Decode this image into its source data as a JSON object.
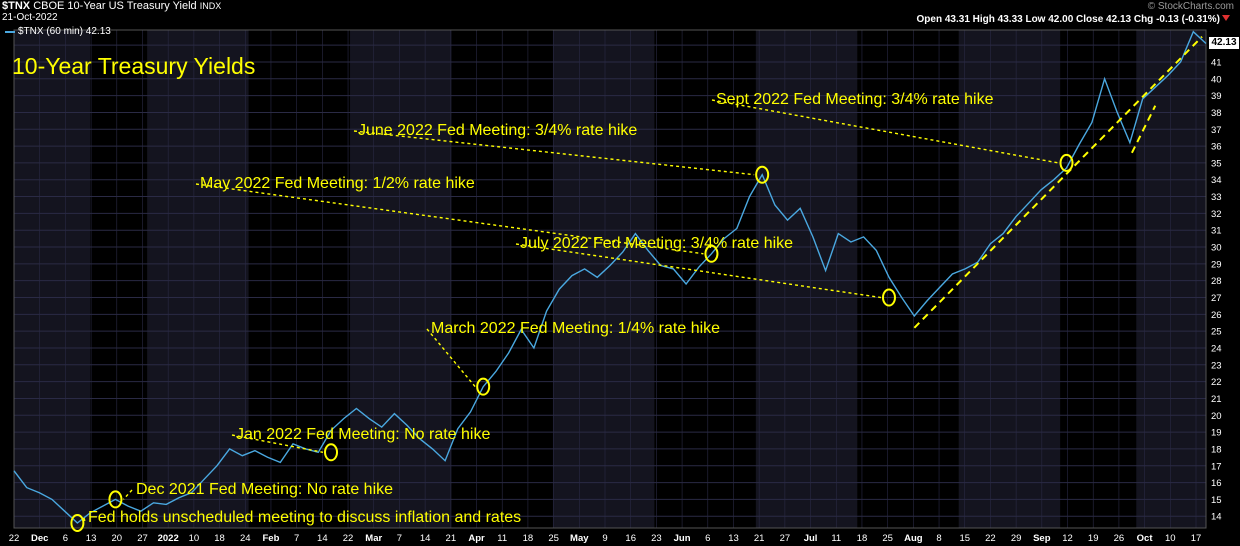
{
  "header": {
    "symbol": "$TNX",
    "name": "CBOE 10-Year US Treasury Yield",
    "exchange": "INDX",
    "date": "21-Oct-2022",
    "attribution": "© StockCharts.com",
    "ohlc": "Open 43.31  High 43.33  Low 42.00  Close 42.13  Chg -0.13 (-0.31%)",
    "legend": "$TNX (60 min) 42.13",
    "last_label": "42.13"
  },
  "colors": {
    "background": "#000000",
    "band": "#14141f",
    "line": "#4aa8e0",
    "annotation": "#ffff00",
    "grid": "#2a2a45"
  },
  "chart_data": {
    "type": "line",
    "title": "10-Year Treasury Yields",
    "xlabel": "",
    "ylabel": "",
    "ylim": [
      13.3,
      42.9
    ],
    "x_ticks": [
      "22",
      "Dec",
      "6",
      "13",
      "20",
      "27",
      "2022",
      "10",
      "18",
      "24",
      "Feb",
      "7",
      "14",
      "22",
      "Mar",
      "7",
      "14",
      "21",
      "Apr",
      "11",
      "18",
      "25",
      "May",
      "9",
      "16",
      "23",
      "Jun",
      "6",
      "13",
      "21",
      "27",
      "Jul",
      "11",
      "18",
      "25",
      "Aug",
      "8",
      "15",
      "22",
      "29",
      "Sep",
      "12",
      "19",
      "26",
      "Oct",
      "10",
      "17"
    ],
    "y_ticks": [
      14,
      15,
      16,
      17,
      18,
      19,
      20,
      21,
      22,
      23,
      24,
      25,
      26,
      27,
      28,
      29,
      30,
      31,
      32,
      33,
      34,
      35,
      36,
      37,
      38,
      39,
      40,
      41,
      42
    ],
    "series": [
      {
        "name": "$TNX (60 min)",
        "values": [
          [
            0,
            16.7
          ],
          [
            1,
            15.7
          ],
          [
            2,
            15.4
          ],
          [
            3,
            15.0
          ],
          [
            4,
            14.3
          ],
          [
            5,
            13.6
          ],
          [
            6,
            14.2
          ],
          [
            7,
            14.6
          ],
          [
            8,
            15.0
          ],
          [
            9,
            14.6
          ],
          [
            10,
            14.3
          ],
          [
            11,
            14.8
          ],
          [
            12,
            14.7
          ],
          [
            13,
            15.1
          ],
          [
            14,
            15.4
          ],
          [
            15,
            16.2
          ],
          [
            16,
            17.0
          ],
          [
            17,
            18.0
          ],
          [
            18,
            17.6
          ],
          [
            19,
            17.9
          ],
          [
            20,
            17.5
          ],
          [
            21,
            17.2
          ],
          [
            22,
            18.3
          ],
          [
            23,
            18.0
          ],
          [
            24,
            17.8
          ],
          [
            25,
            19.1
          ],
          [
            26,
            19.8
          ],
          [
            27,
            20.4
          ],
          [
            28,
            19.8
          ],
          [
            29,
            19.3
          ],
          [
            30,
            20.1
          ],
          [
            31,
            19.4
          ],
          [
            32,
            18.6
          ],
          [
            33,
            18.0
          ],
          [
            34,
            17.3
          ],
          [
            35,
            19.2
          ],
          [
            36,
            20.2
          ],
          [
            37,
            21.7
          ],
          [
            38,
            22.6
          ],
          [
            39,
            23.7
          ],
          [
            40,
            25.1
          ],
          [
            41,
            24.0
          ],
          [
            42,
            26.2
          ],
          [
            43,
            27.5
          ],
          [
            44,
            28.3
          ],
          [
            45,
            28.7
          ],
          [
            46,
            28.2
          ],
          [
            47,
            28.9
          ],
          [
            48,
            29.7
          ],
          [
            49,
            30.8
          ],
          [
            50,
            29.8
          ],
          [
            51,
            28.9
          ],
          [
            52,
            28.7
          ],
          [
            53,
            27.8
          ],
          [
            54,
            28.8
          ],
          [
            55,
            29.6
          ],
          [
            56,
            30.5
          ],
          [
            57,
            31.1
          ],
          [
            58,
            33.0
          ],
          [
            59,
            34.3
          ],
          [
            60,
            32.5
          ],
          [
            61,
            31.6
          ],
          [
            62,
            32.3
          ],
          [
            63,
            30.6
          ],
          [
            64,
            28.6
          ],
          [
            65,
            30.8
          ],
          [
            66,
            30.3
          ],
          [
            67,
            30.6
          ],
          [
            68,
            29.8
          ],
          [
            69,
            28.2
          ],
          [
            70,
            27.0
          ],
          [
            71,
            25.9
          ],
          [
            72,
            26.8
          ],
          [
            73,
            27.6
          ],
          [
            74,
            28.4
          ],
          [
            75,
            28.7
          ],
          [
            76,
            29.1
          ],
          [
            77,
            30.2
          ],
          [
            78,
            30.8
          ],
          [
            79,
            31.8
          ],
          [
            80,
            32.6
          ],
          [
            81,
            33.4
          ],
          [
            82,
            34.0
          ],
          [
            83,
            34.7
          ],
          [
            84,
            36.1
          ],
          [
            85,
            37.4
          ],
          [
            86,
            40.0
          ],
          [
            87,
            38.0
          ],
          [
            88,
            36.2
          ],
          [
            89,
            38.8
          ],
          [
            90,
            39.5
          ],
          [
            91,
            40.2
          ],
          [
            92,
            41.0
          ],
          [
            93,
            42.8
          ],
          [
            94,
            42.1
          ]
        ]
      }
    ],
    "annotations": [
      {
        "text": "Fed holds unscheduled meeting to discuss inflation and rates",
        "x": 5,
        "y": 13.6
      },
      {
        "text": "Dec 2021 Fed Meeting: No rate hike",
        "x": 8,
        "y": 15.0
      },
      {
        "text": "Jan 2022 Fed Meeting: No rate hike",
        "x": 25,
        "y": 17.8
      },
      {
        "text": "March 2022 Fed Meeting: 1/4% rate hike",
        "x": 37,
        "y": 21.7
      },
      {
        "text": "May 2022 Fed Meeting: 1/2% rate hike",
        "x": 55,
        "y": 29.6
      },
      {
        "text": "June 2022 Fed Meeting: 3/4% rate hike",
        "x": 59,
        "y": 34.3
      },
      {
        "text": "July 2022 Fed Meeting: 3/4% rate hike",
        "x": 69,
        "y": 27.0
      },
      {
        "text": "Sept 2022 Fed Meeting: 3/4% rate hike",
        "x": 83,
        "y": 35.0
      }
    ],
    "grid": true,
    "legend": "top-left"
  }
}
